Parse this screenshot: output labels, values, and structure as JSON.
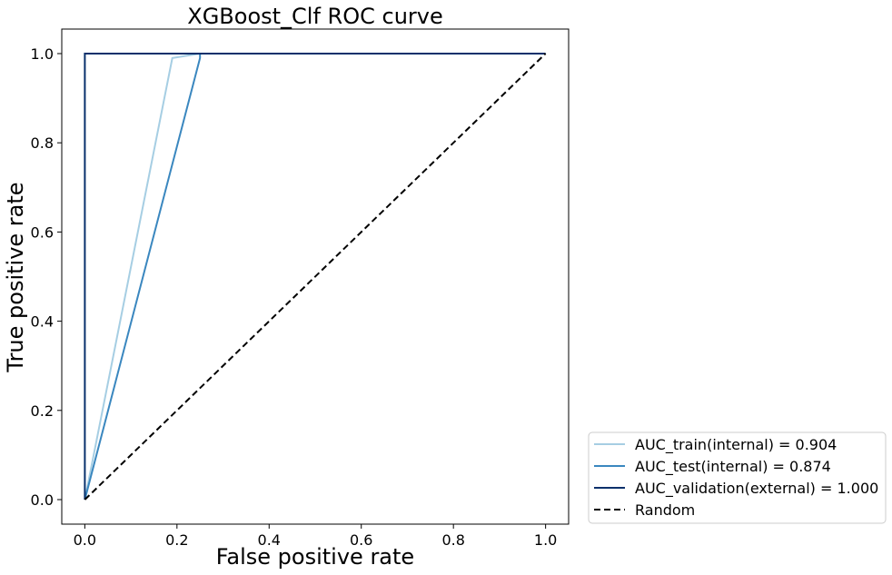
{
  "chart_data": {
    "type": "line",
    "title": "XGBoost_Clf ROC curve",
    "xlabel": "False positive rate",
    "ylabel": "True positive rate",
    "xlim": [
      -0.05,
      1.05
    ],
    "ylim": [
      -0.055,
      1.055
    ],
    "xticks": [
      0.0,
      0.2,
      0.4,
      0.6,
      0.8,
      1.0
    ],
    "xtick_labels": [
      "0.0",
      "0.2",
      "0.4",
      "0.6",
      "0.8",
      "1.0"
    ],
    "yticks": [
      0.0,
      0.2,
      0.4,
      0.6,
      0.8,
      1.0
    ],
    "ytick_labels": [
      "0.0",
      "0.2",
      "0.4",
      "0.6",
      "0.8",
      "1.0"
    ],
    "grid": false,
    "legend_position": "outside lower right",
    "series": [
      {
        "name": "AUC_train(internal) = 0.904",
        "color": "#a6cee3",
        "style": "solid",
        "x": [
          0.0,
          0.19,
          0.25,
          1.0
        ],
        "y": [
          0.0,
          0.99,
          1.0,
          1.0
        ]
      },
      {
        "name": "AUC_test(internal) = 0.874",
        "color": "#3a87bf",
        "style": "solid",
        "x": [
          0.0,
          0.25,
          0.25,
          1.0
        ],
        "y": [
          0.0,
          0.99,
          1.0,
          1.0
        ]
      },
      {
        "name": "AUC_validation(external) = 1.000",
        "color": "#08306b",
        "style": "solid",
        "x": [
          0.0,
          0.0,
          1.0
        ],
        "y": [
          0.0,
          1.0,
          1.0
        ]
      },
      {
        "name": "Random",
        "color": "#000000",
        "style": "dashed",
        "x": [
          0.0,
          1.0
        ],
        "y": [
          0.0,
          1.0
        ]
      }
    ]
  }
}
